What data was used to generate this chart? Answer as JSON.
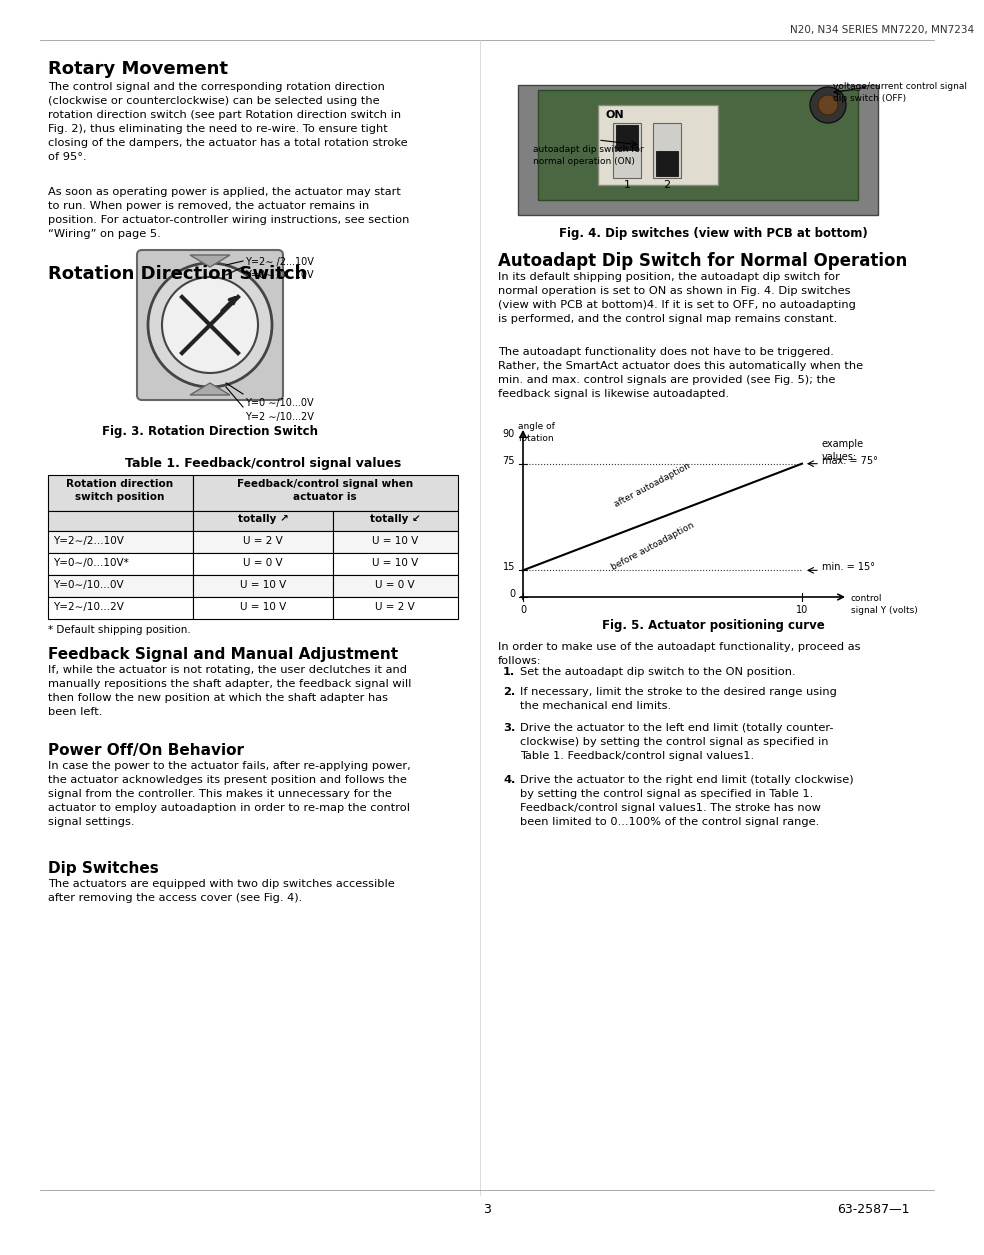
{
  "page_header": "N20, N34 SERIES MN7220, MN7234",
  "page_number": "3",
  "page_code": "63-2587—1",
  "left_column": {
    "rotary_movement_title": "Rotary Movement",
    "rotary_movement_text1": "The control signal and the corresponding rotation direction\n(clockwise or counterclockwise) can be selected using the\nrotation direction switch (see part Rotation direction switch in\nFig. 2), thus eliminating the need to re-wire. To ensure tight\nclosing of the dampers, the actuator has a total rotation stroke\nof 95°.",
    "rotary_movement_text2": "As soon as operating power is applied, the actuator may start\nto run. When power is removed, the actuator remains in\nposition. For actuator-controller wiring instructions, see section\n“Wiring” on page 5.",
    "rotation_switch_title": "Rotation Direction Switch",
    "fig3_caption": "Fig. 3. Rotation Direction Switch",
    "table_title": "Table 1. Feedback/control signal values",
    "table_headers": [
      "Rotation direction\nswitch position",
      "Feedback/control signal when\nactuator is",
      "",
      ""
    ],
    "table_subheaders": [
      "",
      "totally ↗",
      "totally ↙"
    ],
    "table_rows": [
      [
        "Y=2∼/2...10V",
        "U = 2 V",
        "U = 10 V"
      ],
      [
        "Y=0∼/0...10V*",
        "U = 0 V",
        "U = 10 V"
      ],
      [
        "Y=0∼/10...0V",
        "U = 10 V",
        "U = 0 V"
      ],
      [
        "Y=2∼/10...2V",
        "U = 10 V",
        "U = 2 V"
      ]
    ],
    "table_footnote": "* Default shipping position.",
    "feedback_title": "Feedback Signal and Manual Adjustment",
    "feedback_text": "If, while the actuator is not rotating, the user declutches it and\nmanually repositions the shaft adapter, the feedback signal will\nthen follow the new position at which the shaft adapter has\nbeen left.",
    "power_title": "Power Off/On Behavior",
    "power_text": "In case the power to the actuator fails, after re-applying power,\nthe actuator acknowledges its present position and follows the\nsignal from the controller. This makes it unnecessary for the\nactuator to employ autoadaption in order to re-map the control\nsignal settings.",
    "dip_title": "Dip Switches",
    "dip_text": "The actuators are equipped with two dip switches accessible\nafter removing the access cover (see Fig. 4)."
  },
  "right_column": {
    "fig4_caption": "Fig. 4. Dip switches (view with PCB at bottom)",
    "autoadapt_title": "Autoadapt Dip Switch for Normal Operation",
    "autoadapt_text1": "In its default shipping position, the autoadapt dip switch for\nnormal operation is set to ON as shown in Fig. 4. Dip switches\n(view with PCB at bottom)4. If it is set to OFF, no autoadapting\nis performed, and the control signal map remains constant.",
    "autoadapt_text2": "The autoadapt functionality does not have to be triggered.\nRather, the SmartAct actuator does this automatically when the\nmin. and max. control signals are provided (see Fig. 5); the\nfeedback signal is likewise autoadapted.",
    "fig5_caption": "Fig. 5. Actuator positioning curve",
    "steps_intro": "In order to make use of the autoadapt functionality, proceed as\nfollows:",
    "steps": [
      "Set the autoadapt dip switch to the ON position.",
      "If necessary, limit the stroke to the desired range using\nthe mechanical end limits.",
      "Drive the actuator to the left end limit (totally counter-\nclockwise) by setting the control signal as specified in\nTable 1. Feedback/control signal values1.",
      "Drive the actuator to the right end limit (totally clockwise)\nby setting the control signal as specified in Table 1.\nFeedback/control signal values1. The stroke has now\nbeen limited to 0...100% of the control signal range."
    ]
  },
  "bg_color": "#ffffff",
  "text_color": "#000000",
  "header_color": "#1a1a1a"
}
